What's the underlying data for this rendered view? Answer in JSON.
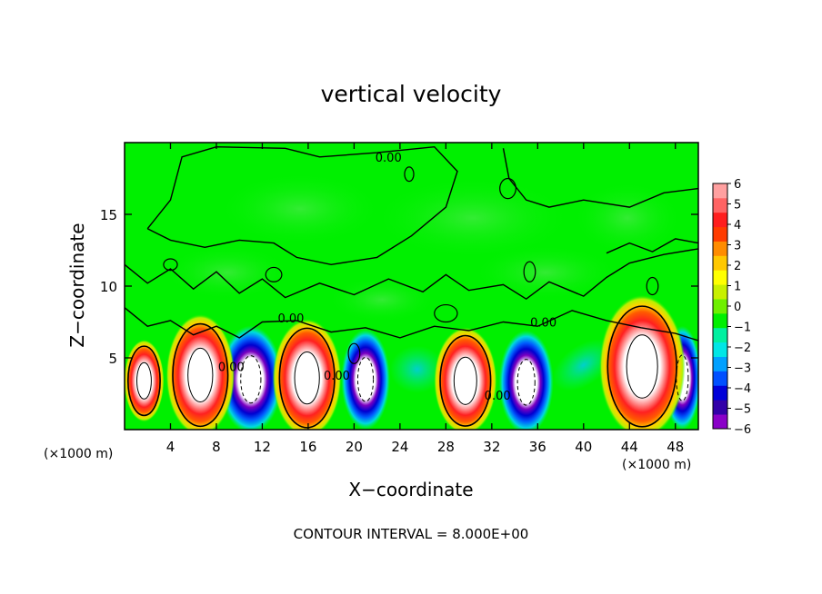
{
  "chart_data": {
    "type": "heatmap",
    "title": "vertical velocity",
    "xlabel": "X−coordinate",
    "ylabel": "Z−coordinate",
    "x_unit_left": "(×1000 m)",
    "x_unit_right": "(×1000 m)",
    "footer": "CONTOUR INTERVAL = 8.000E+00",
    "xlim": [
      0,
      50
    ],
    "ylim": [
      0,
      20
    ],
    "x_ticks": [
      4,
      8,
      12,
      16,
      20,
      24,
      28,
      32,
      36,
      40,
      44,
      48
    ],
    "y_ticks": [
      5,
      10,
      15
    ],
    "colorbar": {
      "min": -6,
      "max": 6,
      "ticks": [
        6,
        5,
        4,
        3,
        2,
        1,
        0,
        -1,
        -2,
        -3,
        -4,
        -5,
        -6
      ],
      "colors": [
        "#8a00c8",
        "#3200a8",
        "#0000d8",
        "#0050ff",
        "#00a0ff",
        "#00e6e6",
        "#00f0a0",
        "#00f000",
        "#6ef000",
        "#c8f000",
        "#ffff00",
        "#ffc800",
        "#ff8c00",
        "#ff3c00",
        "#ff1e1e",
        "#ff6464",
        "#ffa0a0"
      ]
    },
    "contour_labels": [
      {
        "text": "0.00",
        "x": 23.0,
        "z": 19.0
      },
      {
        "text": "0.00",
        "x": 14.5,
        "z": 7.8
      },
      {
        "text": "0.00",
        "x": 36.5,
        "z": 7.5
      },
      {
        "text": "0.00",
        "x": 9.3,
        "z": 4.4
      },
      {
        "text": "0.00",
        "x": 18.5,
        "z": 3.8
      },
      {
        "text": "0.00",
        "x": 32.5,
        "z": 2.4
      }
    ],
    "updrafts": [
      {
        "x": 1.7,
        "z": 3.4,
        "rx": 1.4,
        "rz": 2.3
      },
      {
        "x": 6.6,
        "z": 3.8,
        "rx": 2.4,
        "rz": 3.4
      },
      {
        "x": 15.9,
        "z": 3.6,
        "rx": 2.4,
        "rz": 3.3
      },
      {
        "x": 29.7,
        "z": 3.4,
        "rx": 2.2,
        "rz": 3.0
      },
      {
        "x": 45.1,
        "z": 4.4,
        "rx": 3.0,
        "rz": 4.0
      }
    ],
    "downdrafts": [
      {
        "x": 11.0,
        "z": 3.5,
        "rx": 2.2,
        "rz": 3.0
      },
      {
        "x": 21.0,
        "z": 3.5,
        "rx": 1.7,
        "rz": 2.8
      },
      {
        "x": 35.0,
        "z": 3.3,
        "rx": 1.9,
        "rz": 2.9
      },
      {
        "x": 48.6,
        "z": 3.6,
        "rx": 1.3,
        "rz": 2.9
      }
    ]
  }
}
